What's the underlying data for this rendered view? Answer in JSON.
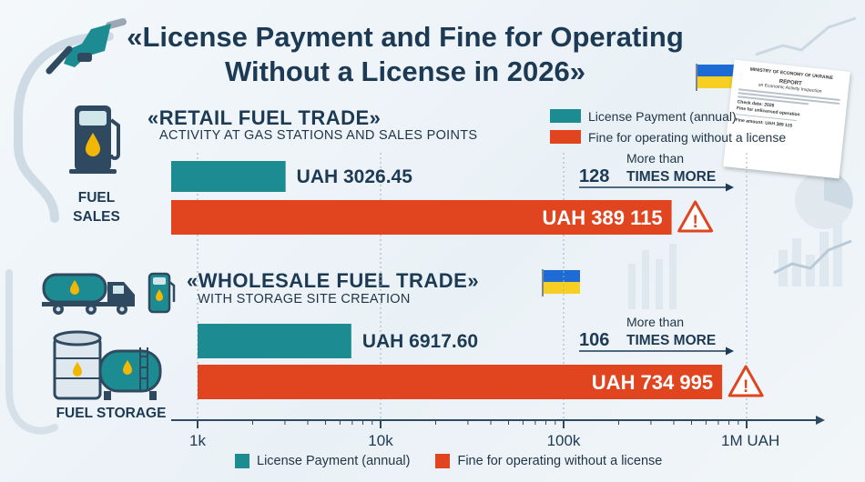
{
  "title": "«License Payment and Fine for Operating Without a License in 2026»",
  "legend": {
    "license": "License Payment (annual)",
    "fine": "Fine for operating without a license"
  },
  "colors": {
    "license": "#1c8c92",
    "fine": "#e0451f",
    "warning": "#e0451f",
    "text": "#1d3a55"
  },
  "icons": [
    "fuel-nozzle-icon",
    "fuel-pump-icon",
    "fuel-truck-icon",
    "storage-tank-icon",
    "ukraine-flag-icon",
    "warning-icon",
    "report-document-icon"
  ],
  "retail": {
    "title": "«RETAIL FUEL TRADE»",
    "subtitle": "ACTIVITY AT GAS STATIONS AND SALES POINTS",
    "icon_label_1": "FUEL",
    "icon_label_2": "SALES",
    "license_label": "UAH 3026.45",
    "fine_label": "UAH 389 115",
    "ratio_prefix": "More than",
    "ratio_value": "128",
    "ratio_suffix": "TIMES MORE"
  },
  "wholesale": {
    "title": "«WHOLESALE FUEL TRADE»",
    "subtitle": "WITH STORAGE SITE CREATION",
    "icon_label": "FUEL STORAGE",
    "license_label": "UAH 6917.60",
    "fine_label": "UAH 734 995",
    "ratio_prefix": "More than",
    "ratio_value": "106",
    "ratio_suffix": "TIMES MORE"
  },
  "document": {
    "header": "MINISTRY OF ECONOMY OF UKRAINE",
    "title": "REPORT",
    "subtitle": "on Economic Activity Inspection",
    "check_date": "Check date: 2026",
    "fine_line": "Fine for unlicensed operation",
    "amount": "Fine amount: UAH 389 115"
  },
  "chart_data": {
    "type": "bar",
    "orientation": "horizontal",
    "x_scale": "log",
    "xlim": [
      1000,
      1300000
    ],
    "ticks": [
      {
        "value": 1000,
        "label": "1k"
      },
      {
        "value": 10000,
        "label": "10k"
      },
      {
        "value": 100000,
        "label": "100k"
      },
      {
        "value": 1000000,
        "label": "1M UAH"
      }
    ],
    "categories": [
      "«RETAIL FUEL TRADE»",
      "«WHOLESALE FUEL TRADE»"
    ],
    "series": [
      {
        "name": "License Payment (annual)",
        "values": [
          3026.45,
          6917.6
        ]
      },
      {
        "name": "Fine for operating without a license",
        "values": [
          389115,
          734995
        ]
      }
    ]
  }
}
